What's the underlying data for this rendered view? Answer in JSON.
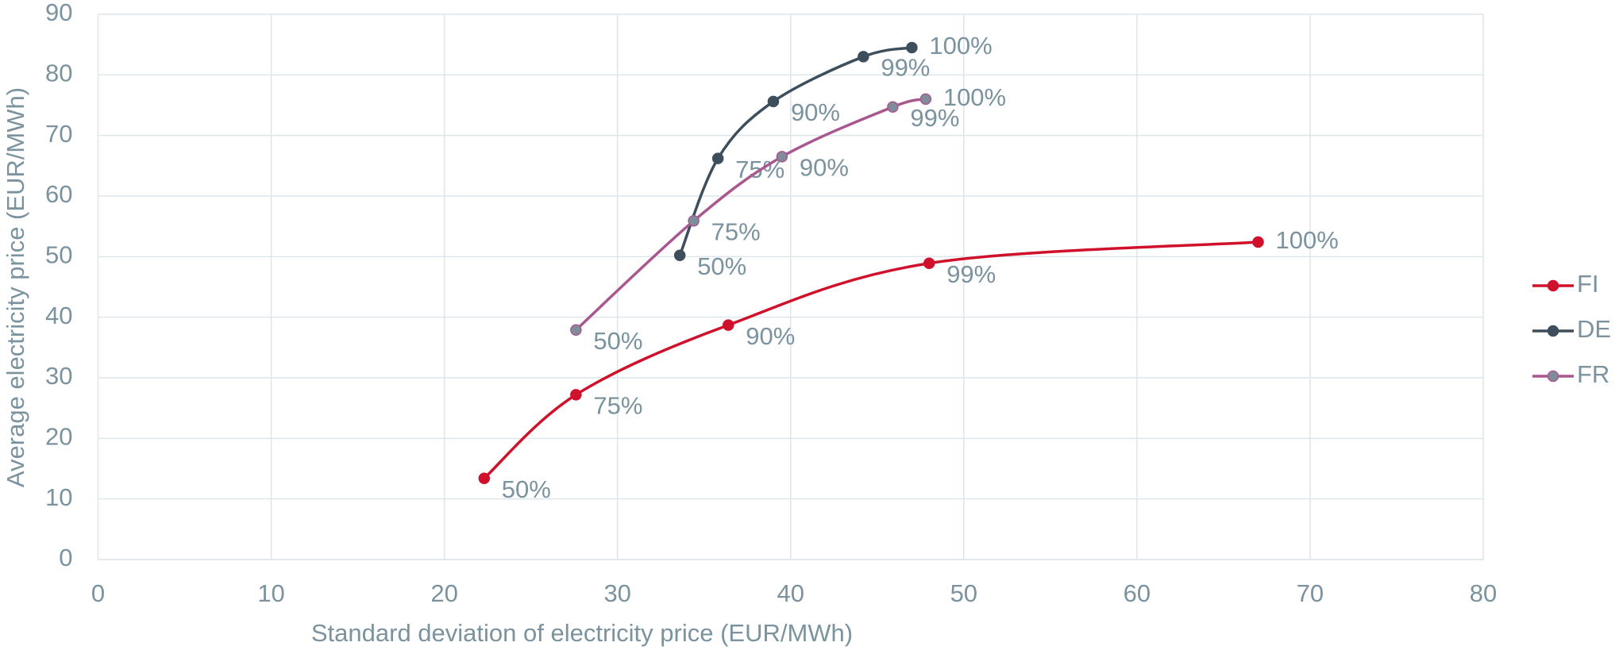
{
  "chart_data": {
    "type": "scatter",
    "xlabel": "Standard deviation of electricity price (EUR/MWh)",
    "ylabel": "Average electricity price (EUR/MWh)",
    "xlim": [
      0,
      80
    ],
    "xticks": [
      0,
      10,
      20,
      30,
      40,
      50,
      60,
      70,
      80
    ],
    "ylim": [
      0,
      90
    ],
    "yticks": [
      0,
      10,
      20,
      30,
      40,
      50,
      60,
      70,
      80,
      90
    ],
    "grid": true,
    "smooth": true,
    "legend": "right",
    "series": [
      {
        "name": "FI",
        "color": "#d0112b",
        "marker_color": "#d0112b",
        "x": [
          22.3,
          27.6,
          36.4,
          48,
          67
        ],
        "values": [
          13.4,
          27.2,
          38.7,
          48.9,
          52.4
        ],
        "point_labels": [
          "50%",
          "75%",
          "90%",
          "99%",
          "100%"
        ]
      },
      {
        "name": "DE",
        "color": "#3d4f5c",
        "marker_color": "#3d4f5c",
        "x": [
          33.6,
          35.8,
          39,
          44.2,
          47
        ],
        "values": [
          50.2,
          66.2,
          75.6,
          83,
          84.5
        ],
        "point_labels": [
          "50%",
          "75%",
          "90%",
          "99%",
          "100%"
        ]
      },
      {
        "name": "FR",
        "color": "#a8578f",
        "marker_color": "#7f8c99",
        "x": [
          27.6,
          34.4,
          39.5,
          45.9,
          47.8
        ],
        "values": [
          37.9,
          55.9,
          66.5,
          74.7,
          76
        ],
        "point_labels": [
          "50%",
          "75%",
          "90%",
          "99%",
          "100%"
        ]
      }
    ]
  }
}
